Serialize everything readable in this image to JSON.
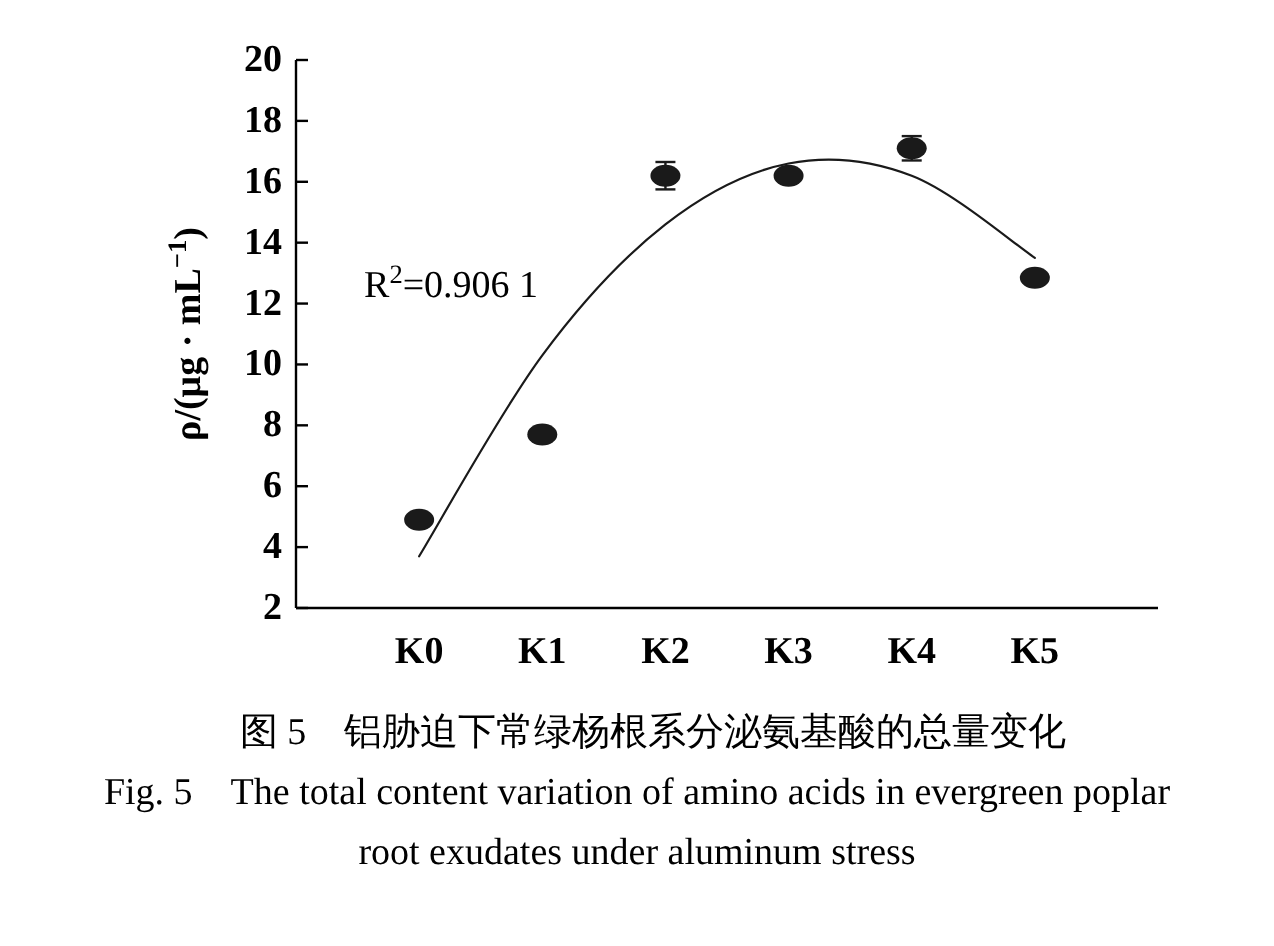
{
  "chart_data": {
    "type": "scatter",
    "title": "图 5　铝胁迫下常绿杨根系分泌氨基酸的总量变化",
    "subtitle": "Fig. 5　The total content variation of amino acids in evergreen poplar root exudates under aluminum stress",
    "ylabel": "ρ/(μg · mL$^{−1}$)",
    "categories": [
      "K0",
      "K1",
      "K2",
      "K3",
      "K4",
      "K5"
    ],
    "series": [
      {
        "color": "#1a1a1a",
        "marker": "circle",
        "values": [
          4.9,
          7.7,
          16.2,
          16.2,
          17.1,
          12.85
        ],
        "errors": [
          0.1,
          0.1,
          0.45,
          0.15,
          0.4,
          0.1
        ]
      },
      {
        "type": "line",
        "color": "#1a1a1a",
        "marker": "none",
        "values": [
          3.7,
          10.3,
          14.6,
          16.6,
          16.2,
          13.5
        ]
      }
    ],
    "ylim": [
      2,
      20
    ],
    "yticks": [
      2,
      4,
      6,
      8,
      10,
      12,
      14,
      16,
      18,
      20
    ],
    "grid": false,
    "annotations": [
      "R$^{2}$=0.906 1"
    ]
  }
}
